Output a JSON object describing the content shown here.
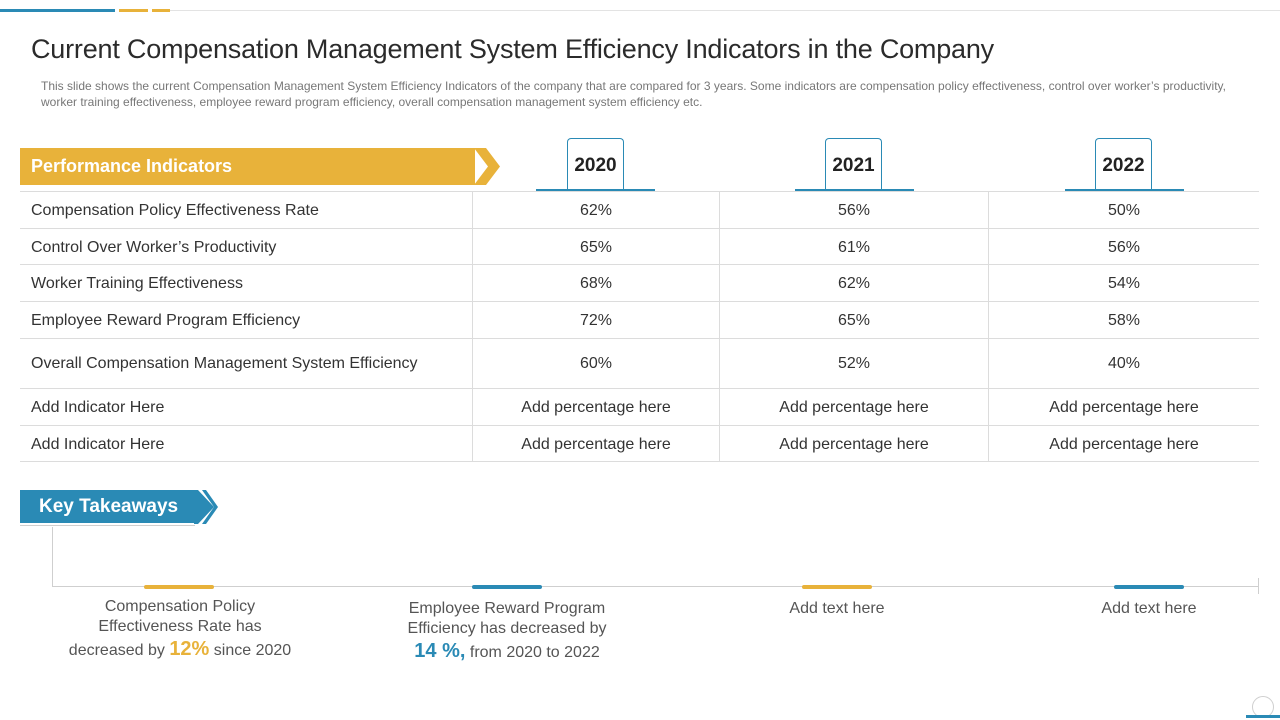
{
  "colors": {
    "yellow": "#e8b23a",
    "blue": "#2a8ab5"
  },
  "title": "Current Compensation Management System Efficiency Indicators in the Company",
  "subtitle": "This slide shows the current Compensation Management System Efficiency Indicators of the company that are compared for 3 years. Some indicators are compensation policy effectiveness, control over worker’s productivity, worker training effectiveness, employee reward program efficiency, overall compensation management system efficiency etc.",
  "table": {
    "header_label": "Performance Indicators",
    "years": [
      "2020",
      "2021",
      "2022"
    ],
    "rows": [
      {
        "indicator": "Compensation Policy Effectiveness Rate",
        "values": [
          "62%",
          "56%",
          "50%"
        ]
      },
      {
        "indicator": "Control Over Worker’s Productivity",
        "values": [
          "65%",
          "61%",
          "56%"
        ]
      },
      {
        "indicator": "Worker Training Effectiveness",
        "values": [
          "68%",
          "62%",
          "54%"
        ]
      },
      {
        "indicator": "Employee Reward Program Efficiency",
        "values": [
          "72%",
          "65%",
          "58%"
        ]
      },
      {
        "indicator": "Overall Compensation Management System Efficiency",
        "values": [
          "60%",
          "52%",
          "40%"
        ]
      },
      {
        "indicator": "Add Indicator Here",
        "values": [
          "Add percentage here",
          "Add percentage here",
          "Add percentage here"
        ]
      },
      {
        "indicator": "Add Indicator Here",
        "values": [
          "Add percentage here",
          "Add percentage here",
          "Add percentage here"
        ]
      }
    ]
  },
  "takeaways": {
    "label": "Key Takeaways",
    "items": [
      {
        "line1": "Compensation Policy",
        "line2": "Effectiveness Rate has",
        "pre": "decreased by ",
        "highlight": "12%",
        "post": " since 2020"
      },
      {
        "line1": "Employee Reward Program",
        "line2": "Efficiency has decreased by",
        "pre": "",
        "highlight": "14 %,",
        "post": " from 2020 to 2022"
      },
      {
        "text": "Add text here"
      },
      {
        "text": "Add text here"
      }
    ]
  }
}
